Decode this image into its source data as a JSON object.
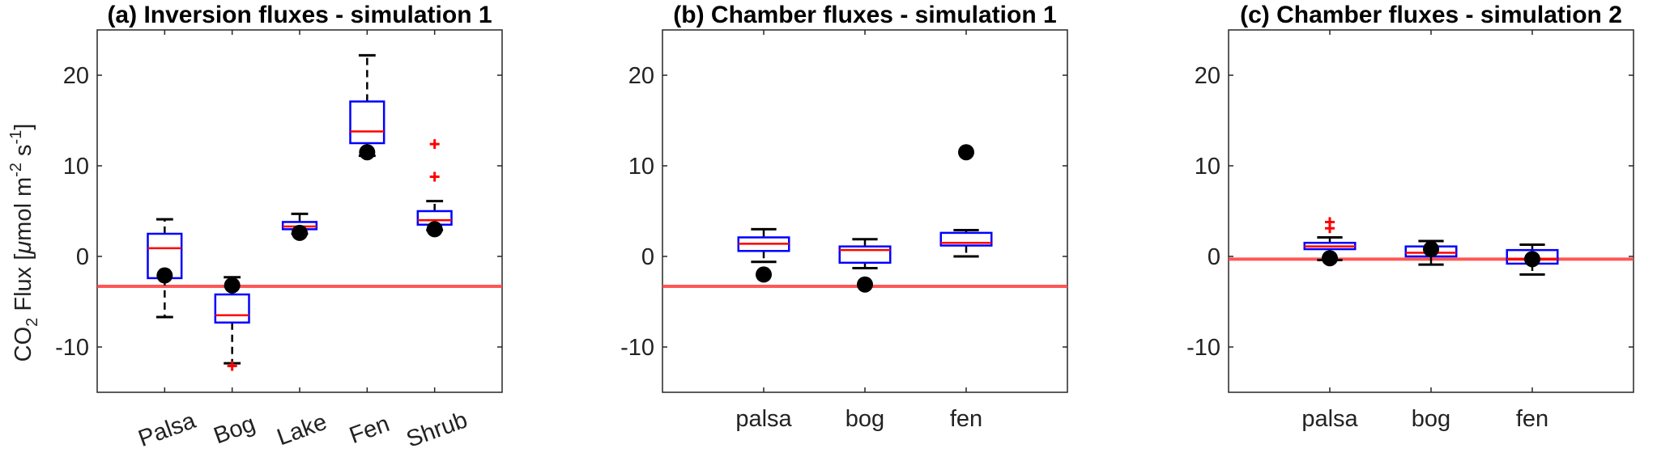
{
  "ylabel": {
    "prefix": "CO",
    "sub_2": "2",
    "mid": " Flux [",
    "mu": "μ",
    "unit_a": "mol m",
    "sup_m2": "-2",
    "unit_b": " s",
    "sup_s1": "-1",
    "close": "]"
  },
  "colors": {
    "box": "#0000ff",
    "median": "#ff0000",
    "whisker": "#000000",
    "outlier": "#ff0000",
    "reference_line": "#ff4444",
    "marker": "#000000"
  },
  "chart_data": [
    {
      "type": "box",
      "title": "(a) Inversion fluxes - simulation 1",
      "ylim": [
        -15,
        25
      ],
      "yticks": [
        -10,
        0,
        10,
        20
      ],
      "ytick_labels": [
        "-10",
        "0",
        "10",
        "20"
      ],
      "categories": [
        "Palsa",
        "Bog",
        "Lake",
        "Fen",
        "Shrub"
      ],
      "xtick_rotation": -20,
      "reference_line": -3.3,
      "boxes": [
        {
          "category": "Palsa",
          "whisker_low": -6.7,
          "q1": -2.4,
          "median": 0.9,
          "q3": 2.5,
          "whisker_high": 4.1,
          "outliers": [],
          "marker": -2.1
        },
        {
          "category": "Bog",
          "whisker_low": -11.8,
          "q1": -7.3,
          "median": -6.5,
          "q3": -4.2,
          "whisker_high": -2.3,
          "outliers": [
            -12.1
          ],
          "marker": -3.2
        },
        {
          "category": "Lake",
          "whisker_low": 2.5,
          "q1": 3.0,
          "median": 3.3,
          "q3": 3.8,
          "whisker_high": 4.7,
          "outliers": [],
          "marker": 2.6
        },
        {
          "category": "Fen",
          "whisker_low": 11.1,
          "q1": 12.5,
          "median": 13.8,
          "q3": 17.1,
          "whisker_high": 22.2,
          "outliers": [],
          "marker": 11.5
        },
        {
          "category": "Shrub",
          "whisker_low": 2.9,
          "q1": 3.5,
          "median": 4.0,
          "q3": 5.0,
          "whisker_high": 6.1,
          "outliers": [
            8.8,
            12.4
          ],
          "marker": 3.0
        }
      ]
    },
    {
      "type": "box",
      "title": "(b) Chamber fluxes - simulation 1",
      "ylim": [
        -15,
        25
      ],
      "yticks": [
        -10,
        0,
        10,
        20
      ],
      "ytick_labels": [
        "-10",
        "0",
        "10",
        "20"
      ],
      "categories": [
        "palsa",
        "bog",
        "fen"
      ],
      "xtick_rotation": 0,
      "reference_line": -3.3,
      "boxes": [
        {
          "category": "palsa",
          "whisker_low": -0.6,
          "q1": 0.6,
          "median": 1.4,
          "q3": 2.1,
          "whisker_high": 3.0,
          "outliers": [],
          "marker": -2.0
        },
        {
          "category": "bog",
          "whisker_low": -1.3,
          "q1": -0.7,
          "median": 0.7,
          "q3": 1.1,
          "whisker_high": 1.9,
          "outliers": [],
          "marker": -3.1
        },
        {
          "category": "fen",
          "whisker_low": 0.0,
          "q1": 1.2,
          "median": 1.5,
          "q3": 2.6,
          "whisker_high": 2.9,
          "outliers": [],
          "marker": 11.5
        }
      ]
    },
    {
      "type": "box",
      "title": "(c) Chamber fluxes - simulation 2",
      "ylim": [
        -15,
        25
      ],
      "yticks": [
        -10,
        0,
        10,
        20
      ],
      "ytick_labels": [
        "-10",
        "0",
        "10",
        "20"
      ],
      "categories": [
        "palsa",
        "bog",
        "fen"
      ],
      "xtick_rotation": 0,
      "reference_line": -0.3,
      "boxes": [
        {
          "category": "palsa",
          "whisker_low": -0.4,
          "q1": 0.8,
          "median": 1.1,
          "q3": 1.5,
          "whisker_high": 2.1,
          "outliers": [
            3.1,
            3.8
          ],
          "marker": -0.2
        },
        {
          "category": "bog",
          "whisker_low": -0.9,
          "q1": 0.0,
          "median": 0.4,
          "q3": 1.1,
          "whisker_high": 1.7,
          "outliers": [],
          "marker": 0.8
        },
        {
          "category": "fen",
          "whisker_low": -2.0,
          "q1": -0.8,
          "median": -0.3,
          "q3": 0.7,
          "whisker_high": 1.3,
          "outliers": [],
          "marker": -0.3
        }
      ]
    }
  ]
}
